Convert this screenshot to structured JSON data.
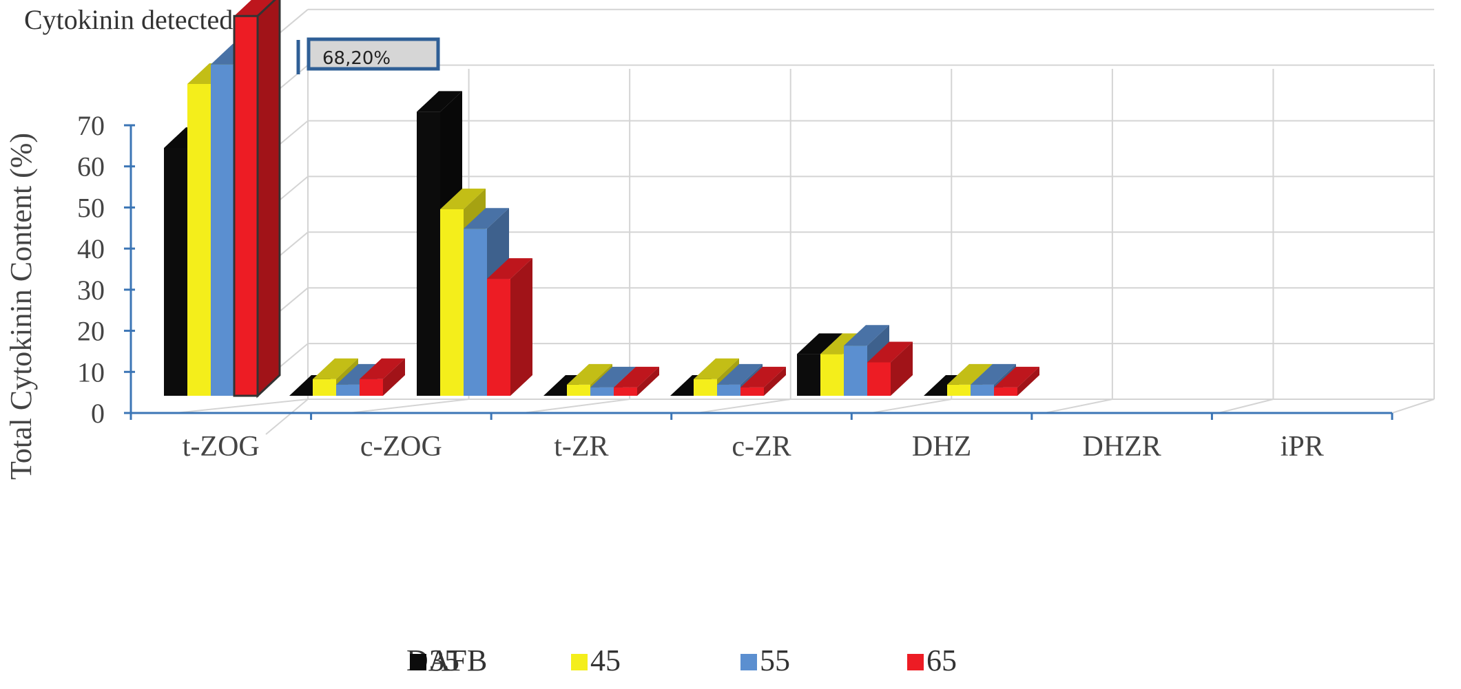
{
  "chart_data": {
    "type": "bar",
    "title": "Cytokinin detected",
    "ylabel": "Total Cytokinin Content (%)",
    "xlabel": "",
    "ylim": [
      0,
      70
    ],
    "yticks": [
      "0",
      "10",
      "20",
      "30",
      "40",
      "50",
      "60",
      "70"
    ],
    "categories": [
      "t-ZOG",
      "c-ZOG",
      "t-ZR",
      "c-ZR",
      "DHZ",
      "DHZR",
      "iPR"
    ],
    "legend": {
      "title": "DAFB",
      "placement": "bottom"
    },
    "series": [
      {
        "name": "35",
        "color": "#0c0c0c",
        "values": [
          44.5,
          0,
          51,
          0,
          0,
          7.5,
          0
        ]
      },
      {
        "name": "45",
        "color": "#f4ee1b",
        "values": [
          56,
          3,
          33.5,
          2,
          3,
          7.5,
          2
        ]
      },
      {
        "name": "55",
        "color": "#5b8fd0",
        "values": [
          59.5,
          2,
          30,
          1.5,
          2,
          9,
          2
        ]
      },
      {
        "name": "65",
        "color": "#ed1c24",
        "values": [
          68.2,
          3,
          21,
          1.5,
          1.5,
          6,
          1.5
        ]
      }
    ],
    "annotation": {
      "text": "68,20%",
      "series": "65",
      "category": "t-ZOG"
    },
    "grid": true
  }
}
